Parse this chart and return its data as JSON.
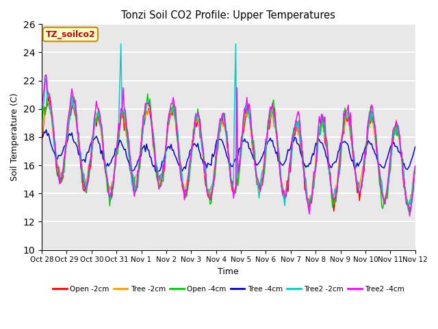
{
  "title": "Tonzi Soil CO2 Profile: Upper Temperatures",
  "xlabel": "Time",
  "ylabel": "Soil Temperature (C)",
  "ylim": [
    10,
    26
  ],
  "yticks": [
    10,
    12,
    14,
    16,
    18,
    20,
    22,
    24,
    26
  ],
  "x_labels": [
    "Oct 28",
    "Oct 29",
    "Oct 30",
    "Oct 31",
    "Nov 1",
    "Nov 2",
    "Nov 3",
    "Nov 4",
    "Nov 5",
    "Nov 6",
    "Nov 7",
    "Nov 8",
    "Nov 9",
    "Nov 10",
    "Nov 11",
    "Nov 12"
  ],
  "label_annotation": "TZ_soilco2",
  "series_labels": [
    "Open -2cm",
    "Tree -2cm",
    "Open -4cm",
    "Tree -4cm",
    "Tree2 -2cm",
    "Tree2 -4cm"
  ],
  "series_colors": [
    "#ff0000",
    "#ff9900",
    "#00cc00",
    "#0000cc",
    "#00cccc",
    "#ff00ff"
  ],
  "background_color": "#e8e8e8",
  "grid_color": "#ffffff",
  "n_points": 336
}
